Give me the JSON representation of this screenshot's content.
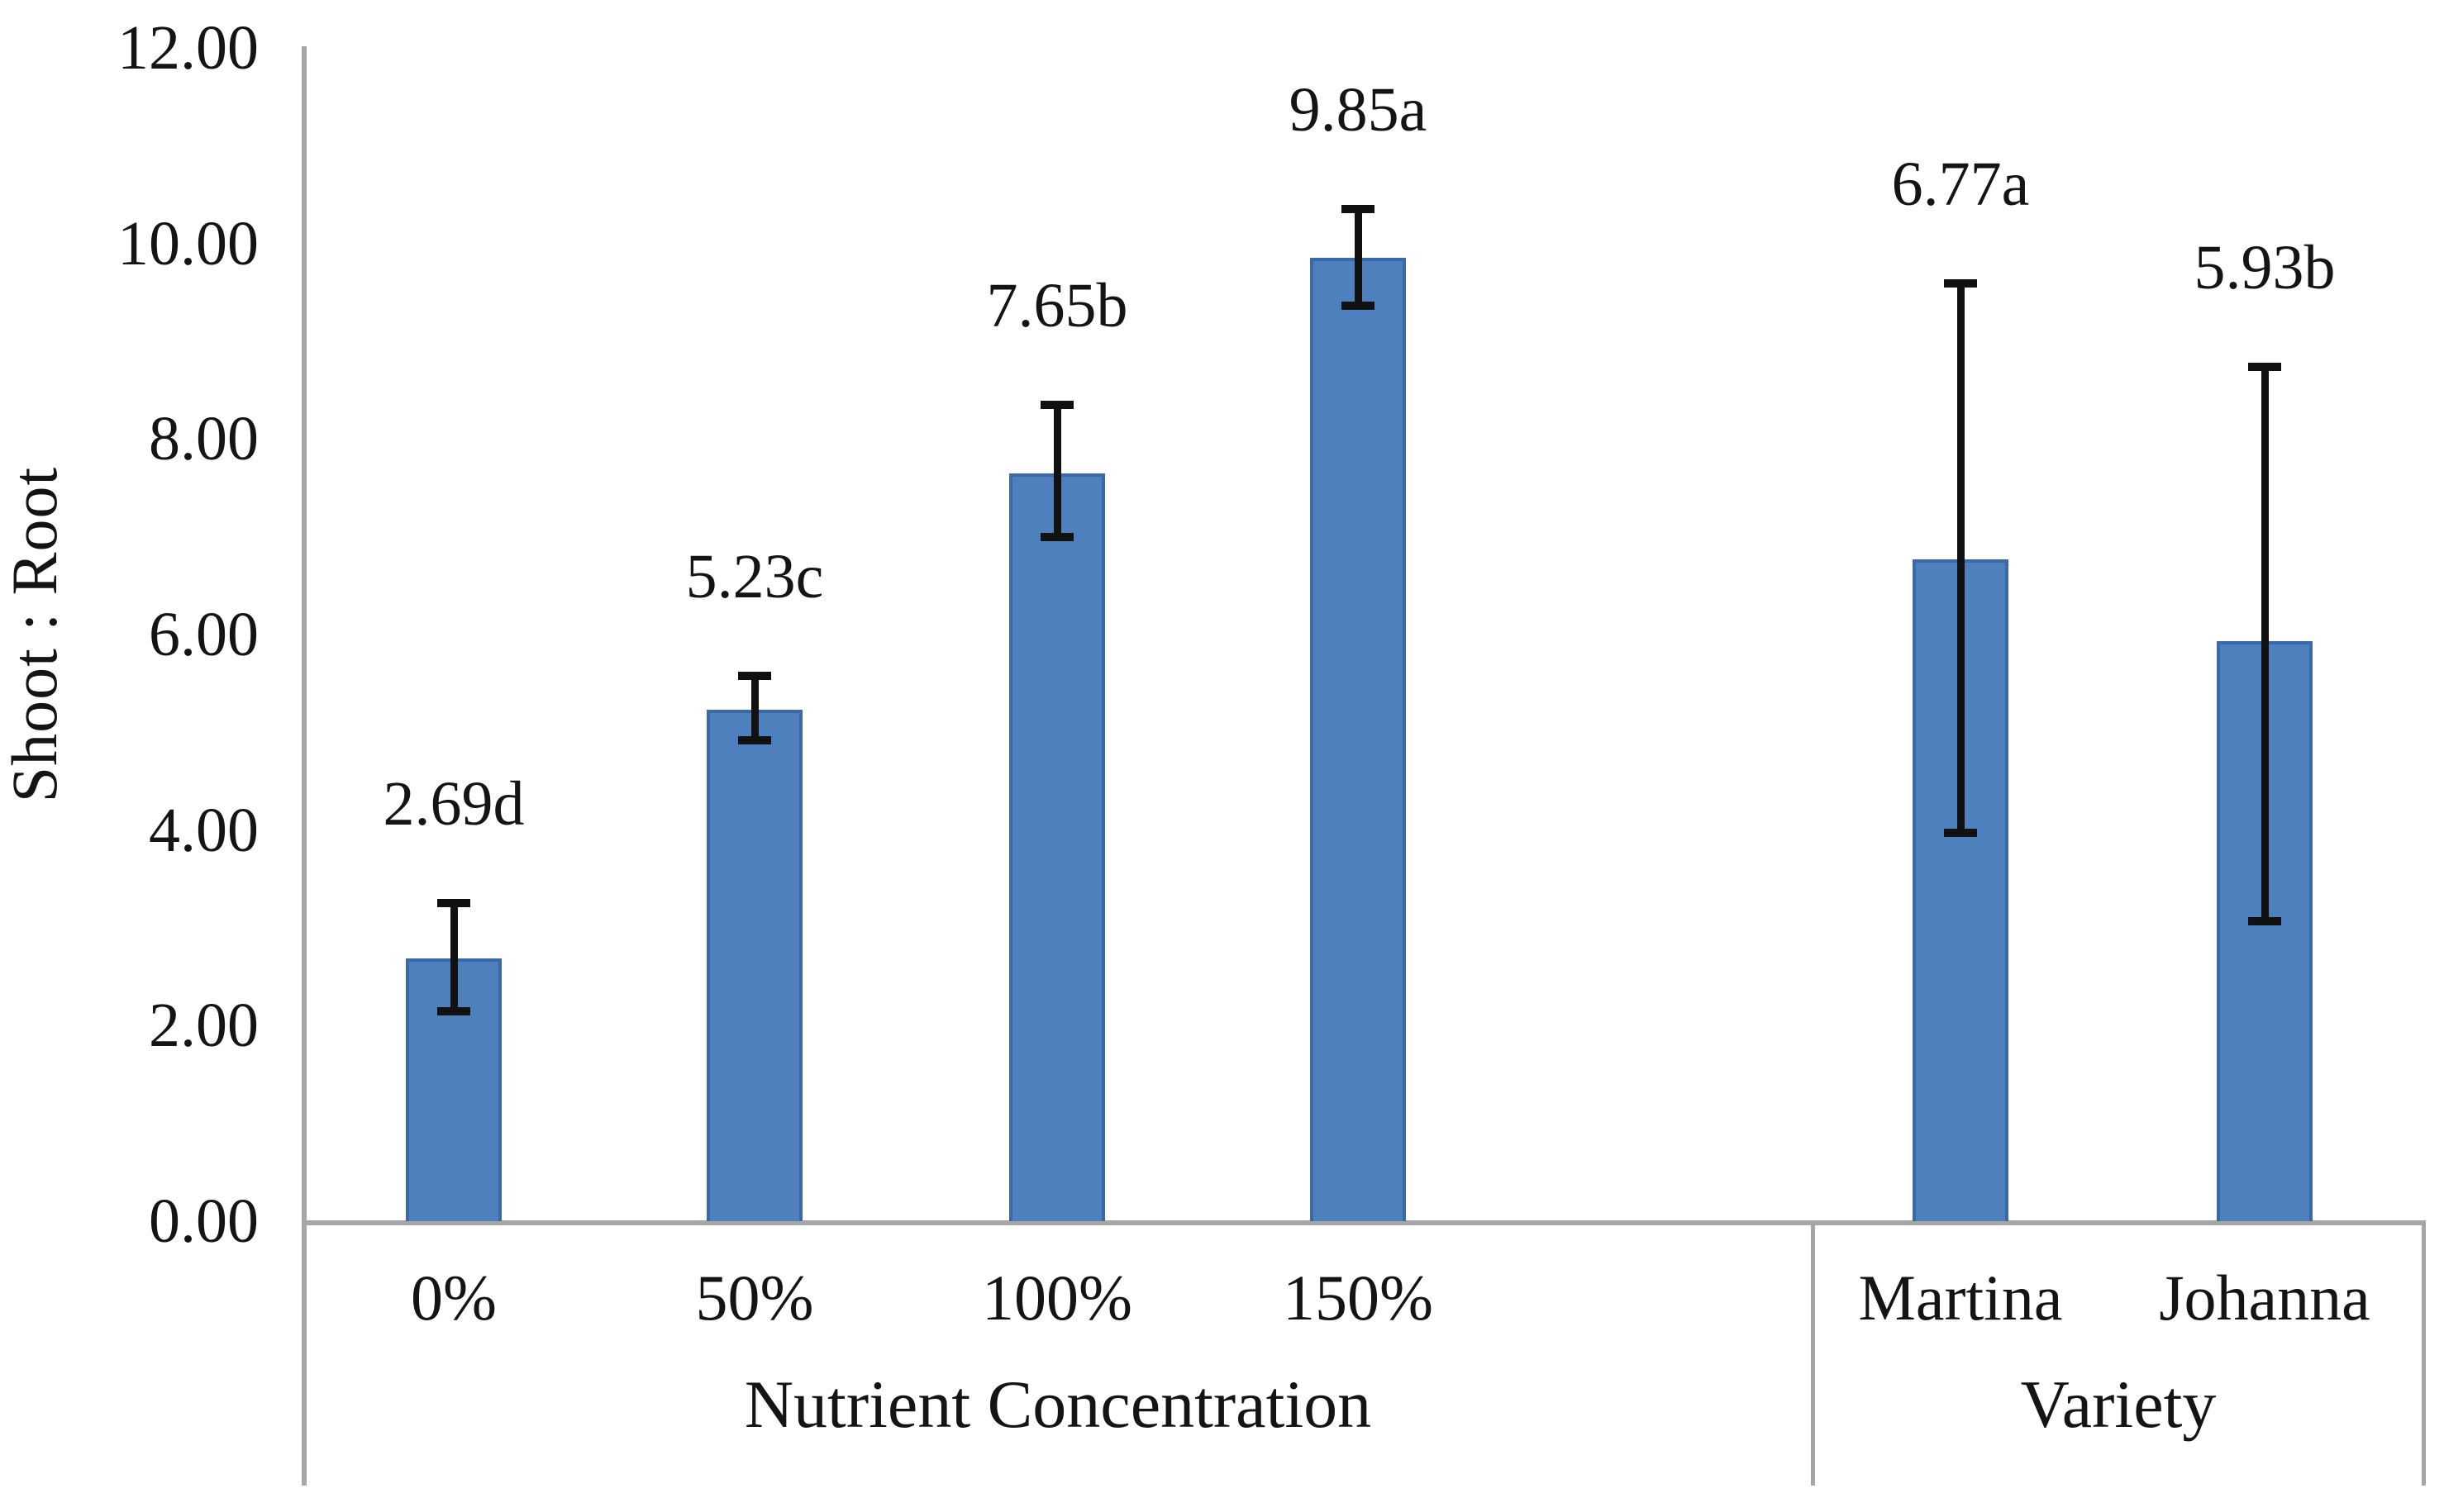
{
  "chart_data": {
    "type": "bar",
    "title": "",
    "ylabel": "Shoot : Root",
    "xlabel": "",
    "ylim": [
      0,
      12
    ],
    "ytick_step": 2,
    "ytick_labels": [
      "0.00",
      "2.00",
      "4.00",
      "6.00",
      "8.00",
      "10.00",
      "12.00"
    ],
    "grid": false,
    "legend": "none",
    "bar_color": "#4E80BD",
    "bar_border_color": "#3A68A9",
    "error_bar_color": "#111111",
    "axis_color": "#A6A6A6",
    "groups": [
      {
        "label": "Nutrient Concentration",
        "bars": [
          {
            "category": "0%",
            "value": 2.69,
            "data_label": "2.69d",
            "error_low": 2.15,
            "error_high": 3.25
          },
          {
            "category": "50%",
            "value": 5.23,
            "data_label": "5.23c",
            "error_low": 4.92,
            "error_high": 5.58
          },
          {
            "category": "100%",
            "value": 7.65,
            "data_label": "7.65b",
            "error_low": 7.0,
            "error_high": 8.35
          },
          {
            "category": "150%",
            "value": 9.85,
            "data_label": "9.85a",
            "error_low": 9.36,
            "error_high": 10.35
          }
        ]
      },
      {
        "label": "Variety",
        "bars": [
          {
            "category": "Martina",
            "value": 6.77,
            "data_label": "6.77a",
            "error_low": 3.97,
            "error_high": 9.59
          },
          {
            "category": "Johanna",
            "value": 5.93,
            "data_label": "5.93b",
            "error_low": 3.07,
            "error_high": 8.74
          }
        ]
      }
    ]
  }
}
